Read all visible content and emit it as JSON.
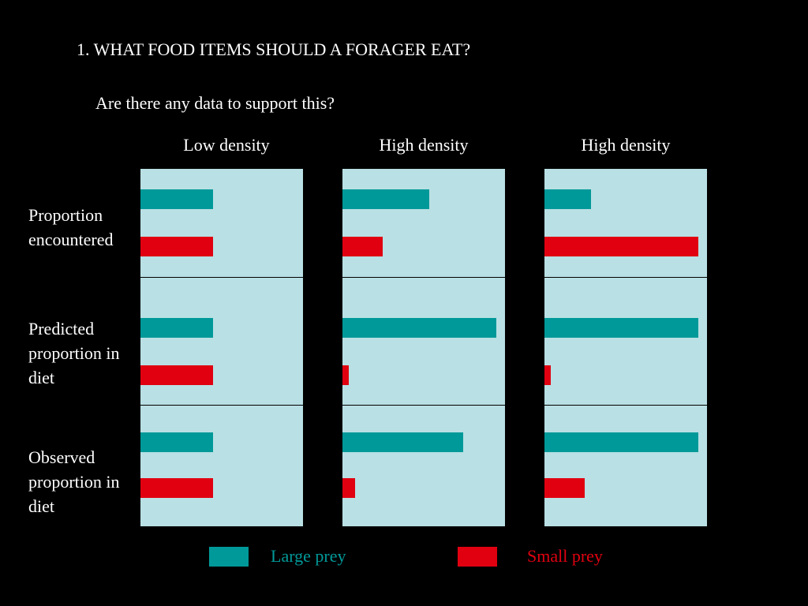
{
  "chart_data": {
    "type": "bar",
    "title": "1. WHAT FOOD ITEMS SHOULD A FORAGER EAT?",
    "subtitle": "Are there any data to support this?",
    "columns": [
      "Low density",
      "High density",
      "High density"
    ],
    "rows": [
      "Proportion\nencountered",
      "Predicted\nproportion in\ndiet",
      "Observed\nproportion in\ndiet"
    ],
    "series": [
      {
        "name": "Large prey",
        "color": "#009999"
      },
      {
        "name": "Small  prey",
        "color": "#e00010"
      }
    ],
    "xlim": [
      0,
      1
    ],
    "values": [
      [
        [
          0.47,
          0.47
        ],
        [
          0.56,
          0.26
        ],
        [
          0.3,
          0.99
        ]
      ],
      [
        [
          0.47,
          0.47
        ],
        [
          0.99,
          0.04
        ],
        [
          0.99,
          0.04
        ]
      ],
      [
        [
          0.47,
          0.47
        ],
        [
          0.78,
          0.08
        ],
        [
          0.99,
          0.26
        ]
      ]
    ],
    "grid": false,
    "legend_position": "bottom"
  }
}
